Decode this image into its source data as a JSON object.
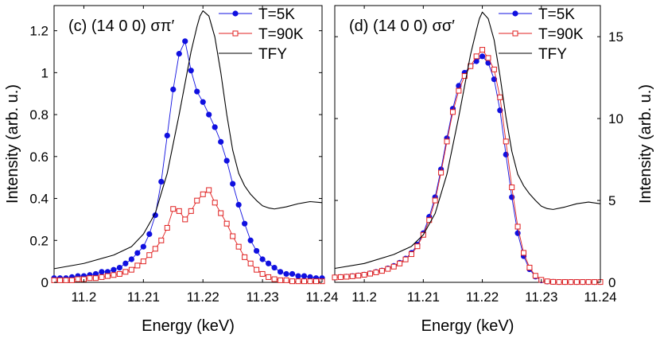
{
  "figure": {
    "shared_ylabel_left": "Intensity (arb. u.)",
    "shared_ylabel_right": "Intensity (arb. u.)"
  },
  "chart_data": [
    {
      "type": "line",
      "title": "(c)  (14 0 0)  σπ′",
      "panel_label": "(c)",
      "reflection": "(14 0 0)",
      "polarization": "σπ′",
      "xlabel": "Energy (keV)",
      "ylabel": "Intensity (arb. u.)",
      "xlim": [
        11.195,
        11.24
      ],
      "ylim": [
        0,
        1.32
      ],
      "xticks": [
        11.2,
        11.21,
        11.22,
        11.23,
        11.24
      ],
      "xtick_labels": [
        "11.2",
        "11.21",
        "11.22",
        "11.23",
        "11.24"
      ],
      "yticks": [
        0,
        0.2,
        0.4,
        0.6,
        0.8,
        1,
        1.2
      ],
      "ytick_labels": [
        "0",
        "0.2",
        "0.4",
        "0.6",
        "0.8",
        "1",
        "1.2"
      ],
      "legend_position": "top-right",
      "series": [
        {
          "name": "T=5K",
          "color": "#1010e0",
          "marker": "filled-circle",
          "x": [
            11.195,
            11.196,
            11.197,
            11.198,
            11.199,
            11.2,
            11.201,
            11.202,
            11.203,
            11.204,
            11.205,
            11.206,
            11.207,
            11.208,
            11.209,
            11.21,
            11.211,
            11.212,
            11.213,
            11.214,
            11.215,
            11.216,
            11.217,
            11.218,
            11.219,
            11.22,
            11.221,
            11.222,
            11.223,
            11.224,
            11.225,
            11.226,
            11.227,
            11.228,
            11.229,
            11.23,
            11.231,
            11.232,
            11.233,
            11.234,
            11.235,
            11.236,
            11.237,
            11.238,
            11.239,
            11.24
          ],
          "y": [
            0.02,
            0.02,
            0.02,
            0.025,
            0.03,
            0.03,
            0.035,
            0.04,
            0.05,
            0.05,
            0.06,
            0.07,
            0.09,
            0.11,
            0.14,
            0.17,
            0.23,
            0.32,
            0.48,
            0.7,
            0.92,
            1.09,
            1.15,
            1.01,
            0.91,
            0.86,
            0.8,
            0.74,
            0.67,
            0.58,
            0.47,
            0.37,
            0.28,
            0.2,
            0.15,
            0.11,
            0.09,
            0.07,
            0.05,
            0.04,
            0.04,
            0.03,
            0.03,
            0.025,
            0.02,
            0.02
          ]
        },
        {
          "name": "T=90K",
          "color": "#e02020",
          "marker": "open-square",
          "x": [
            11.195,
            11.196,
            11.197,
            11.198,
            11.199,
            11.2,
            11.201,
            11.202,
            11.203,
            11.204,
            11.205,
            11.206,
            11.207,
            11.208,
            11.209,
            11.21,
            11.211,
            11.212,
            11.213,
            11.214,
            11.215,
            11.216,
            11.217,
            11.218,
            11.219,
            11.22,
            11.221,
            11.222,
            11.223,
            11.224,
            11.225,
            11.226,
            11.227,
            11.228,
            11.229,
            11.23,
            11.231,
            11.232,
            11.233,
            11.234,
            11.235,
            11.236,
            11.237,
            11.238,
            11.239,
            11.24
          ],
          "y": [
            0.01,
            0.01,
            0.01,
            0.01,
            0.015,
            0.015,
            0.02,
            0.02,
            0.025,
            0.03,
            0.035,
            0.04,
            0.05,
            0.06,
            0.08,
            0.1,
            0.13,
            0.16,
            0.2,
            0.26,
            0.35,
            0.34,
            0.3,
            0.34,
            0.39,
            0.42,
            0.44,
            0.38,
            0.33,
            0.28,
            0.22,
            0.17,
            0.12,
            0.09,
            0.06,
            0.04,
            0.025,
            0.015,
            0.01,
            0.01,
            0.005,
            0.005,
            0.005,
            0.005,
            0.005,
            0.005
          ]
        },
        {
          "name": "TFY",
          "color": "#000000",
          "marker": "none",
          "x": [
            11.195,
            11.2,
            11.205,
            11.208,
            11.21,
            11.212,
            11.214,
            11.216,
            11.218,
            11.219,
            11.2195,
            11.22,
            11.221,
            11.222,
            11.223,
            11.224,
            11.225,
            11.226,
            11.227,
            11.228,
            11.229,
            11.23,
            11.231,
            11.232,
            11.234,
            11.236,
            11.238,
            11.24
          ],
          "y": [
            0.065,
            0.09,
            0.13,
            0.17,
            0.23,
            0.33,
            0.52,
            0.8,
            1.1,
            1.22,
            1.27,
            1.295,
            1.27,
            1.17,
            1.0,
            0.8,
            0.63,
            0.52,
            0.46,
            0.42,
            0.39,
            0.365,
            0.355,
            0.35,
            0.36,
            0.375,
            0.385,
            0.38
          ]
        }
      ]
    },
    {
      "type": "line",
      "title": "(d)  (14 0 0)  σσ′",
      "panel_label": "(d)",
      "reflection": "(14 0 0)",
      "polarization": "σσ′",
      "xlabel": "Energy (keV)",
      "ylabel": "Intensity (arb. u.)",
      "xlim": [
        11.195,
        11.24
      ],
      "ylim": [
        0,
        16.9
      ],
      "xticks": [
        11.2,
        11.21,
        11.22,
        11.23,
        11.24
      ],
      "xtick_labels": [
        "11.2",
        "11.21",
        "11.22",
        "11.23",
        "11.24"
      ],
      "yticks": [
        0,
        5,
        10,
        15
      ],
      "ytick_labels": [
        "0",
        "5",
        "10",
        "15"
      ],
      "legend_position": "top-right",
      "series": [
        {
          "name": "T=5K",
          "color": "#1010e0",
          "marker": "filled-circle",
          "x": [
            11.195,
            11.196,
            11.197,
            11.198,
            11.199,
            11.2,
            11.201,
            11.202,
            11.203,
            11.204,
            11.205,
            11.206,
            11.207,
            11.208,
            11.209,
            11.21,
            11.211,
            11.212,
            11.213,
            11.214,
            11.215,
            11.216,
            11.217,
            11.218,
            11.219,
            11.22,
            11.221,
            11.222,
            11.223,
            11.224,
            11.225,
            11.226,
            11.227,
            11.228,
            11.229,
            11.23,
            11.231,
            11.232,
            11.233,
            11.234,
            11.235,
            11.236,
            11.237,
            11.238,
            11.239,
            11.24
          ],
          "y": [
            0.3,
            0.32,
            0.35,
            0.38,
            0.42,
            0.47,
            0.55,
            0.63,
            0.72,
            0.85,
            1.0,
            1.2,
            1.45,
            1.8,
            2.3,
            3.0,
            4.0,
            5.2,
            6.9,
            8.8,
            10.6,
            12.0,
            12.8,
            13.2,
            13.5,
            13.8,
            13.4,
            12.4,
            10.5,
            7.8,
            5.2,
            3.0,
            1.6,
            0.8,
            0.35,
            0.12,
            0.05,
            0.03,
            0.02,
            0.02,
            0.02,
            0.02,
            0.02,
            0.02,
            0.02,
            0.02
          ]
        },
        {
          "name": "T=90K",
          "color": "#e02020",
          "marker": "open-square",
          "x": [
            11.195,
            11.196,
            11.197,
            11.198,
            11.199,
            11.2,
            11.201,
            11.202,
            11.203,
            11.204,
            11.205,
            11.206,
            11.207,
            11.208,
            11.209,
            11.21,
            11.211,
            11.212,
            11.213,
            11.214,
            11.215,
            11.216,
            11.217,
            11.218,
            11.219,
            11.22,
            11.221,
            11.222,
            11.223,
            11.224,
            11.225,
            11.226,
            11.227,
            11.228,
            11.229,
            11.23,
            11.231,
            11.232,
            11.233,
            11.234,
            11.235,
            11.236,
            11.237,
            11.238,
            11.239,
            11.24
          ],
          "y": [
            0.3,
            0.32,
            0.34,
            0.37,
            0.41,
            0.46,
            0.53,
            0.61,
            0.7,
            0.82,
            0.96,
            1.15,
            1.4,
            1.72,
            2.2,
            2.9,
            3.8,
            5.0,
            6.7,
            8.6,
            10.4,
            11.7,
            12.6,
            13.2,
            13.8,
            14.2,
            13.7,
            13.0,
            11.3,
            8.6,
            5.8,
            3.4,
            1.8,
            0.9,
            0.4,
            0.15,
            0.06,
            0.03,
            0.02,
            0.02,
            0.02,
            0.02,
            0.02,
            0.02,
            0.02,
            0.02
          ]
        },
        {
          "name": "TFY",
          "color": "#000000",
          "marker": "none",
          "x": [
            11.195,
            11.2,
            11.205,
            11.208,
            11.21,
            11.212,
            11.214,
            11.216,
            11.218,
            11.219,
            11.2195,
            11.22,
            11.221,
            11.222,
            11.223,
            11.224,
            11.225,
            11.226,
            11.227,
            11.228,
            11.229,
            11.23,
            11.231,
            11.232,
            11.234,
            11.236,
            11.238,
            11.24
          ],
          "y": [
            0.85,
            1.15,
            1.7,
            2.2,
            2.9,
            4.2,
            6.6,
            10.1,
            13.9,
            15.4,
            16.1,
            16.5,
            16.1,
            14.8,
            12.6,
            10.1,
            8.0,
            6.6,
            5.9,
            5.4,
            5.0,
            4.65,
            4.5,
            4.45,
            4.6,
            4.8,
            4.9,
            4.8
          ]
        }
      ]
    }
  ]
}
